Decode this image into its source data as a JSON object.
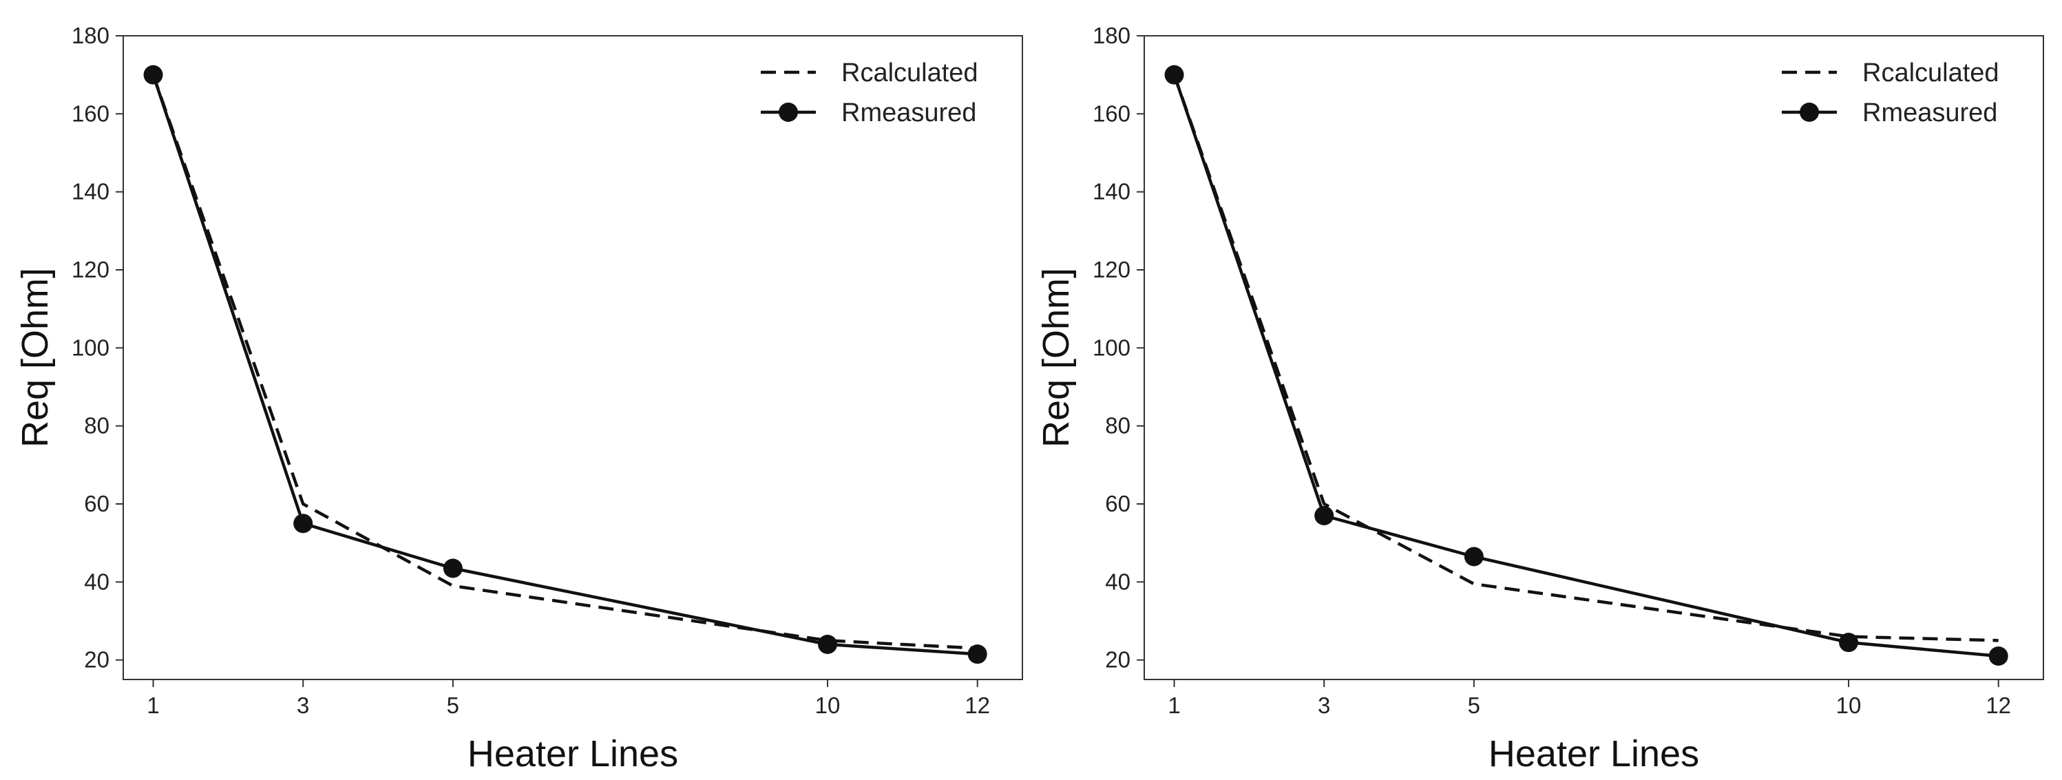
{
  "chart_data": [
    {
      "type": "line",
      "title": "",
      "xlabel": "Heater Lines",
      "ylabel": "Req [Ohm]",
      "x": [
        1,
        3,
        5,
        10,
        12
      ],
      "x_tick_labels": [
        "1",
        "3",
        "5",
        "10",
        "12"
      ],
      "xlim": [
        0.6,
        12.6
      ],
      "ylim": [
        15,
        180
      ],
      "y_ticks": [
        20,
        40,
        60,
        80,
        100,
        120,
        140,
        160,
        180
      ],
      "y_tick_labels": [
        "20",
        "40",
        "60",
        "80",
        "100",
        "120",
        "140",
        "160",
        "180"
      ],
      "grid": false,
      "legend": "top-right",
      "series": [
        {
          "name": "Rcalculated",
          "style": "dashed",
          "marker": "none",
          "values": [
            170,
            60,
            39,
            25,
            23
          ]
        },
        {
          "name": "Rmeasured",
          "style": "solid",
          "marker": "circle",
          "values": [
            170,
            55,
            43.5,
            24,
            21.5
          ]
        }
      ]
    },
    {
      "type": "line",
      "title": "",
      "xlabel": "Heater Lines",
      "ylabel": "Req [Ohm]",
      "x": [
        1,
        3,
        5,
        10,
        12
      ],
      "x_tick_labels": [
        "1",
        "3",
        "5",
        "10",
        "12"
      ],
      "xlim": [
        0.6,
        12.6
      ],
      "ylim": [
        15,
        180
      ],
      "y_ticks": [
        20,
        40,
        60,
        80,
        100,
        120,
        140,
        160,
        180
      ],
      "y_tick_labels": [
        "20",
        "40",
        "60",
        "80",
        "100",
        "120",
        "140",
        "160",
        "180"
      ],
      "grid": false,
      "legend": "top-right",
      "series": [
        {
          "name": "Rcalculated",
          "style": "dashed",
          "marker": "none",
          "values": [
            170,
            60,
            39.5,
            26,
            25
          ]
        },
        {
          "name": "Rmeasured",
          "style": "solid",
          "marker": "circle",
          "values": [
            170,
            57,
            46.5,
            24.5,
            21
          ]
        }
      ]
    }
  ],
  "colors": {
    "line": "#111111",
    "axis": "#333333",
    "background": "#ffffff"
  }
}
